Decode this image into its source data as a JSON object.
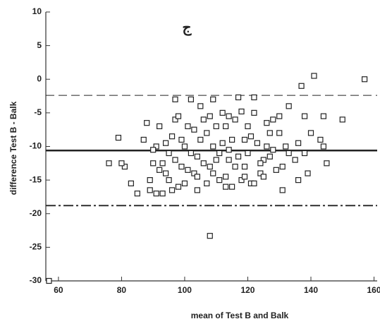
{
  "chart_data": {
    "type": "scatter",
    "annotation": "ج",
    "x_label": "mean of Test B and Balk",
    "y_label": "difference Test B - Balk",
    "xlim": [
      56,
      161
    ],
    "ylim": [
      -30,
      10
    ],
    "xticks": [
      60,
      80,
      100,
      120,
      140,
      160
    ],
    "yticks": [
      10,
      5,
      0,
      -5,
      -10,
      -15,
      -20,
      -25,
      -30
    ],
    "color": "#222222",
    "hlines": [
      {
        "value": -2.4,
        "style": "dashed"
      },
      {
        "value": -10.6,
        "style": "solid"
      },
      {
        "value": -18.8,
        "style": "dashdot"
      }
    ],
    "x": [
      157,
      141,
      137,
      144,
      150,
      143,
      144,
      145,
      140,
      138,
      138,
      139,
      136,
      136,
      133,
      130,
      128,
      127,
      126,
      125,
      124,
      122,
      122,
      121,
      120,
      119,
      118,
      117,
      116,
      115,
      114,
      113,
      112,
      110,
      109,
      108,
      107,
      109,
      106,
      105,
      104,
      103,
      102,
      101,
      100,
      99,
      98,
      97,
      96,
      95,
      94,
      93,
      92,
      91,
      90,
      89,
      88,
      89,
      87,
      85,
      83,
      81,
      80,
      79,
      76,
      108,
      97,
      105,
      113,
      118,
      128,
      131,
      132,
      125,
      121,
      115,
      111,
      104,
      100,
      96,
      91,
      110,
      106,
      102,
      114,
      119,
      123,
      127,
      130,
      116,
      112,
      99,
      94,
      90,
      93,
      97,
      101,
      103,
      107,
      111,
      117,
      124,
      129,
      133,
      135,
      126,
      120,
      114,
      108,
      98,
      92,
      95,
      104,
      109,
      113,
      119,
      122,
      131,
      57
    ],
    "values": [
      0,
      0.5,
      -1,
      -5.5,
      -6,
      -9,
      -10,
      -12.5,
      -8,
      -5.5,
      -11,
      -14,
      -15,
      -9.5,
      -4,
      -5.5,
      -6,
      -8,
      -10,
      -12,
      -14,
      -2.7,
      -5,
      -8.5,
      -11,
      -13,
      -15,
      -2.7,
      -6,
      -9,
      -12,
      -14.5,
      -5,
      -7,
      -10,
      -13,
      -15.5,
      -3,
      -6,
      -9,
      -11.5,
      -14,
      -3,
      -7,
      -10,
      -13,
      -16,
      -6,
      -8.5,
      -11,
      -14,
      -17,
      -7,
      -10,
      -12.5,
      -15,
      -6.5,
      -16.5,
      -9,
      -17,
      -15.5,
      -13,
      -12.5,
      -8.7,
      -12.5,
      -23.3,
      -3,
      -4,
      -7,
      -4.8,
      -10.5,
      -13,
      -10,
      -14.5,
      -15.5,
      -16,
      -15,
      -16.5,
      -15.5,
      -16.5,
      -17,
      -12,
      -12.5,
      -11,
      -10.5,
      -9,
      -9.5,
      -11.5,
      -8,
      -13,
      -9.5,
      -9,
      -9.5,
      -10.5,
      -12.5,
      -12,
      -13.5,
      -7.5,
      -8,
      -11,
      -11.5,
      -12.5,
      -13.5,
      -11,
      -12,
      -6.5,
      -7,
      -5.5,
      -5.5,
      -5.5,
      -13.5,
      -15,
      -14.5,
      -14,
      -16,
      -14.5,
      -15.5,
      -16.5,
      -30
    ]
  }
}
